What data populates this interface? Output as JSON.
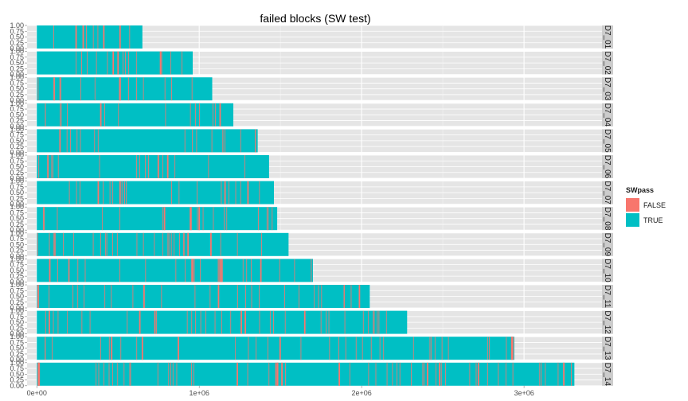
{
  "chart_data": {
    "type": "bar",
    "title": "failed blocks (SW test)",
    "xlabel": "",
    "ylabel": "",
    "x_ticks": [
      0,
      1000000,
      2000000,
      3000000
    ],
    "x_tick_labels": [
      "0e+00",
      "1e+06",
      "2e+06",
      "3e+06"
    ],
    "xlim": [
      -60000,
      3480000
    ],
    "y_ticks": [
      0,
      0.25,
      0.5,
      0.75,
      1
    ],
    "y_tick_labels": [
      "0.00",
      "0.25",
      "0.50",
      "0.75",
      "1.00"
    ],
    "ylim": [
      0,
      1
    ],
    "grid": true,
    "legend_position": "right",
    "legend": {
      "title": "SWpass",
      "items": [
        {
          "label": "FALSE",
          "color": "#f8766d"
        },
        {
          "label": "TRUE",
          "color": "#00bfc4"
        }
      ]
    },
    "panels": [
      {
        "name": "D7_01",
        "max_x": 650000
      },
      {
        "name": "D7_02",
        "max_x": 960000
      },
      {
        "name": "D7_03",
        "max_x": 1080000
      },
      {
        "name": "D7_04",
        "max_x": 1210000
      },
      {
        "name": "D7_05",
        "max_x": 1360000
      },
      {
        "name": "D7_06",
        "max_x": 1430000
      },
      {
        "name": "D7_07",
        "max_x": 1460000
      },
      {
        "name": "D7_08",
        "max_x": 1480000
      },
      {
        "name": "D7_09",
        "max_x": 1550000
      },
      {
        "name": "D7_10",
        "max_x": 1700000
      },
      {
        "name": "D7_11",
        "max_x": 2050000
      },
      {
        "name": "D7_12",
        "max_x": 2280000
      },
      {
        "name": "D7_13",
        "max_x": 2940000
      },
      {
        "name": "D7_14",
        "max_x": 3310000
      }
    ],
    "colors": {
      "panel_background": "#e5e5e5",
      "grid_line": "#ffffff",
      "strip_background": "#cccccc",
      "false_color": "#f8766d",
      "true_color": "#00bfc4"
    }
  }
}
